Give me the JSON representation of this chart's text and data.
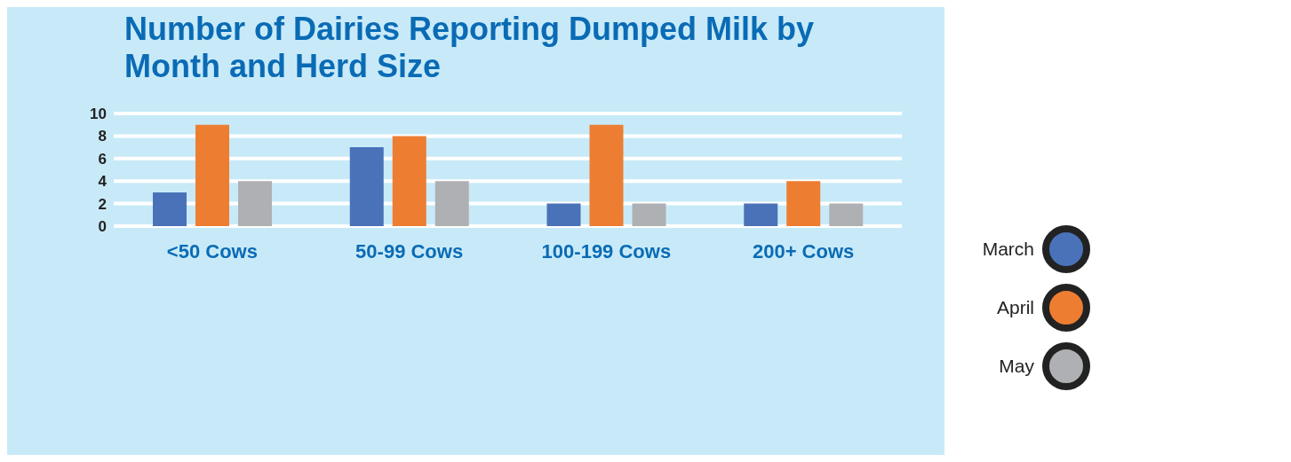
{
  "chart_data": {
    "type": "bar",
    "title": "Number of Dairies Reporting Dumped Milk by Month and Herd Size",
    "categories": [
      "<50 Cows",
      "50-99 Cows",
      "100-199 Cows",
      "200+ Cows"
    ],
    "series": [
      {
        "name": "March",
        "color": "#4a72b8",
        "values": [
          3,
          7,
          2,
          2
        ]
      },
      {
        "name": "April",
        "color": "#ed7d31",
        "values": [
          9,
          8,
          9,
          4
        ]
      },
      {
        "name": "May",
        "color": "#afb0b3",
        "values": [
          4,
          4,
          2,
          2
        ]
      }
    ],
    "ylim": [
      0,
      10
    ],
    "yticks": [
      0,
      2,
      4,
      6,
      8,
      10
    ],
    "grid": "y",
    "legend": "right"
  }
}
